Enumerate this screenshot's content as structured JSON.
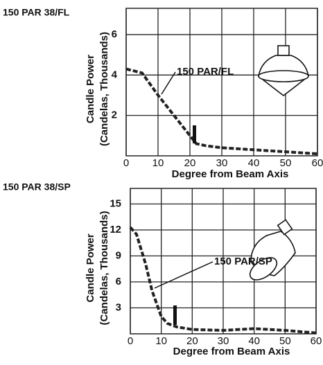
{
  "chart_data": [
    {
      "type": "line",
      "title": "150 PAR 38/FL",
      "ylabel": [
        "Candle Power",
        "(Candelas, Thousands)"
      ],
      "xlabel": "Degree from Beam Axis",
      "annotation": "150 PAR/FL",
      "grid": true,
      "xlim": [
        0,
        60
      ],
      "xticks": [
        0,
        10,
        20,
        30,
        40,
        50,
        60
      ],
      "ylim": [
        0,
        7.3
      ],
      "yticks": [
        2,
        4,
        6
      ],
      "series": [
        {
          "color": "#222222",
          "x": [
            0,
            5,
            10,
            15,
            20,
            22,
            25,
            30,
            40,
            50,
            60
          ],
          "values": [
            4.3,
            4.1,
            3.0,
            2.0,
            1.0,
            0.6,
            0.5,
            0.4,
            0.3,
            0.2,
            0.1
          ]
        }
      ]
    },
    {
      "type": "line",
      "title": "150 PAR 38/SP",
      "ylabel": [
        "Candle Power",
        "(Candelas, Thousands)"
      ],
      "xlabel": "Degree from Beam Axis",
      "annotation": "150 PAR/SP",
      "grid": true,
      "xlim": [
        0,
        60
      ],
      "xticks": [
        0,
        10,
        20,
        30,
        40,
        50,
        60
      ],
      "ylim": [
        0,
        16.8
      ],
      "yticks": [
        3,
        6,
        9,
        12,
        15
      ],
      "series": [
        {
          "color": "#222222",
          "x": [
            0,
            2,
            5,
            7,
            10,
            12,
            15,
            20,
            30,
            40,
            45,
            50,
            60
          ],
          "values": [
            12.3,
            11.5,
            8.0,
            5.0,
            2.0,
            1.2,
            0.8,
            0.5,
            0.4,
            0.6,
            0.5,
            0.4,
            0.1
          ]
        }
      ]
    }
  ]
}
